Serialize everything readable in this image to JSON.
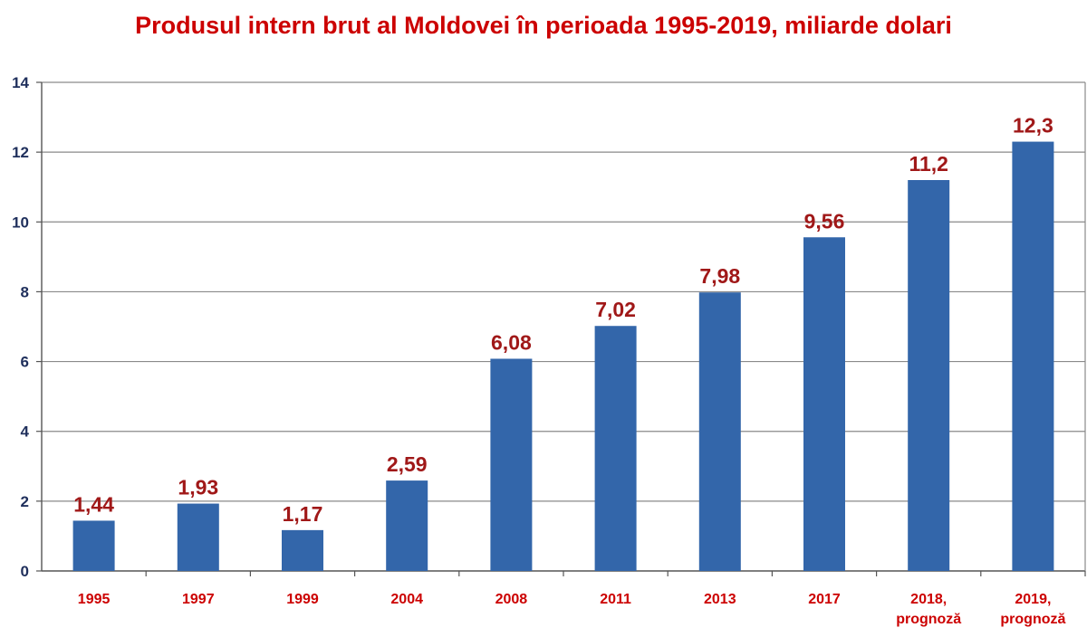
{
  "chart_data": {
    "type": "bar",
    "title": "Produsul intern brut al Moldovei în perioada 1995-2019, miliarde dolari",
    "categories": [
      "1995",
      "1997",
      "1999",
      "2004",
      "2008",
      "2011",
      "2013",
      "2017",
      "2018, prognoză",
      "2019, prognoză"
    ],
    "values": [
      1.44,
      1.93,
      1.17,
      2.59,
      6.08,
      7.02,
      7.98,
      9.56,
      11.2,
      12.3
    ],
    "data_labels": [
      "1,44",
      "1,93",
      "1,17",
      "2,59",
      "6,08",
      "7,02",
      "7,98",
      "9,56",
      "11,2",
      "12,3"
    ],
    "xlabel": "",
    "ylabel": "",
    "ylim": [
      0,
      14
    ],
    "yticks": [
      0,
      2,
      4,
      6,
      8,
      10,
      12,
      14
    ],
    "grid": true,
    "legend": "none",
    "colors": {
      "bar": "#3366aa",
      "title": "#cc0000",
      "data_label": "#a01818",
      "x_tick": "#cc0000",
      "y_tick": "#1f2f5c",
      "grid": "#8a8a8a"
    }
  }
}
